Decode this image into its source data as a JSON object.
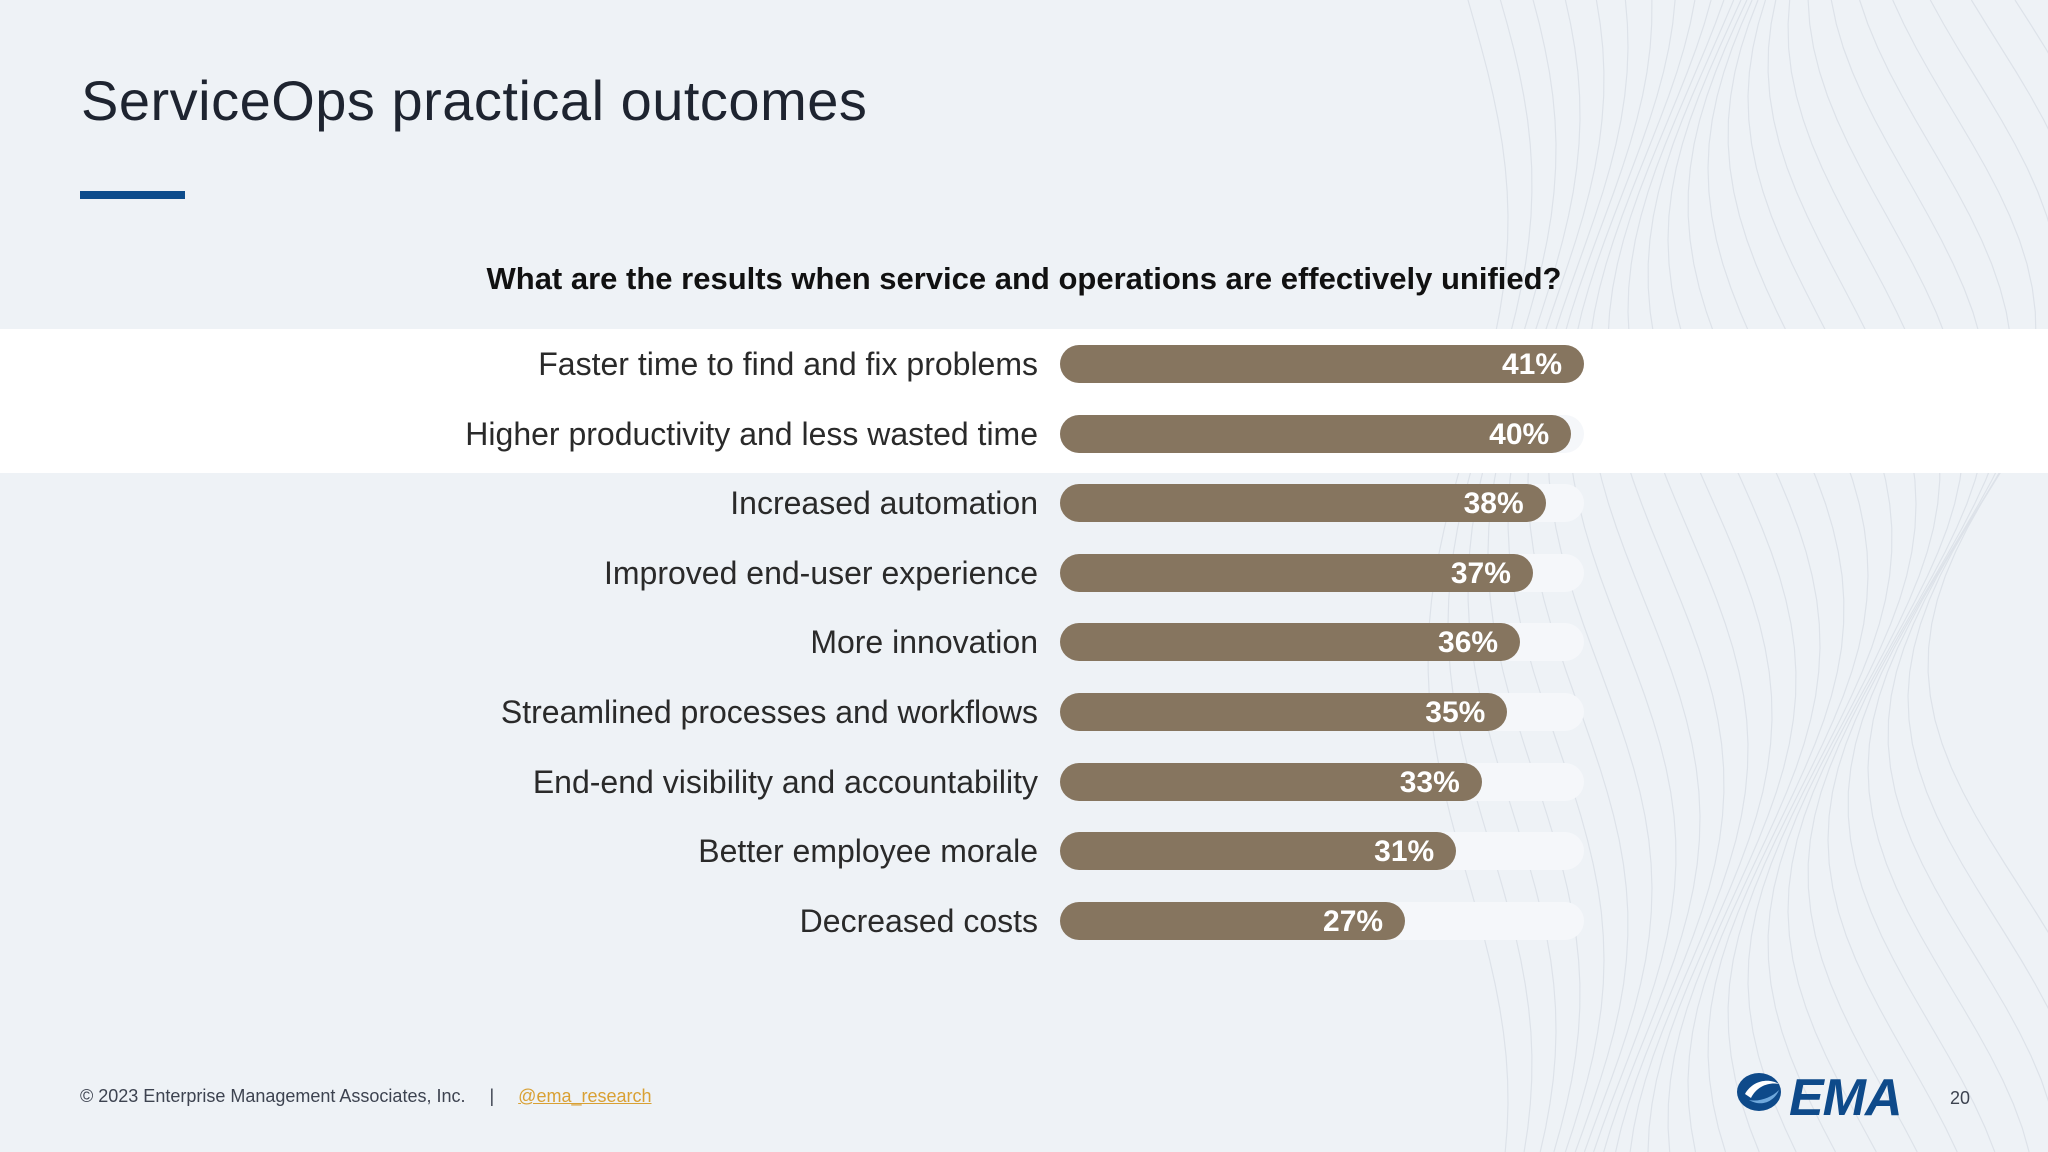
{
  "slide": {
    "title": "ServiceOps practical outcomes",
    "accent_color": "#0d4c8c"
  },
  "chart_data": {
    "type": "bar",
    "orientation": "horizontal",
    "title": "What are the results when service and operations are effectively unified?",
    "categories": [
      "Faster time to find and fix problems",
      "Higher productivity and less wasted time",
      "Increased automation",
      "Improved end-user experience",
      "More innovation",
      "Streamlined processes and workflows",
      "End-end visibility and accountability",
      "Better employee morale",
      "Decreased costs"
    ],
    "values": [
      41,
      40,
      38,
      37,
      36,
      35,
      33,
      31,
      27
    ],
    "value_labels": [
      "41%",
      "40%",
      "38%",
      "37%",
      "36%",
      "35%",
      "33%",
      "31%",
      "27%"
    ],
    "xlim": [
      0,
      41
    ],
    "unit": "%",
    "bar_color": "#86755f",
    "highlighted_categories": [
      0,
      1
    ],
    "grid": false,
    "legend": "none"
  },
  "footer": {
    "copyright": "© 2023 Enterprise Management Associates, Inc.",
    "separator": "|",
    "social_link": "@ema_research",
    "page_number": "20"
  },
  "logo": {
    "text": "EMA",
    "icon": "ema-swoosh-icon"
  }
}
